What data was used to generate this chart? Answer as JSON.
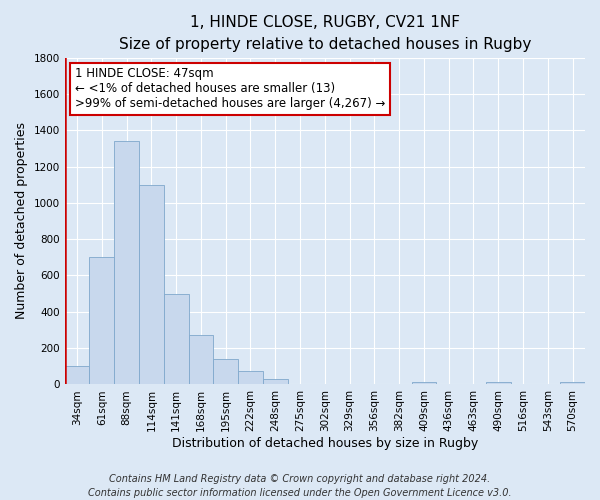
{
  "title": "1, HINDE CLOSE, RUGBY, CV21 1NF",
  "subtitle": "Size of property relative to detached houses in Rugby",
  "xlabel": "Distribution of detached houses by size in Rugby",
  "ylabel": "Number of detached properties",
  "categories": [
    "34sqm",
    "61sqm",
    "88sqm",
    "114sqm",
    "141sqm",
    "168sqm",
    "195sqm",
    "222sqm",
    "248sqm",
    "275sqm",
    "302sqm",
    "329sqm",
    "356sqm",
    "382sqm",
    "409sqm",
    "436sqm",
    "463sqm",
    "490sqm",
    "516sqm",
    "543sqm",
    "570sqm"
  ],
  "values": [
    100,
    700,
    1340,
    1100,
    500,
    275,
    140,
    75,
    30,
    0,
    0,
    0,
    0,
    0,
    15,
    0,
    0,
    15,
    0,
    0,
    15
  ],
  "bar_color": "#c8d8ed",
  "bar_edge_color": "#7fa8cc",
  "marker_color": "#cc0000",
  "marker_bar_index": 0,
  "ylim": [
    0,
    1800
  ],
  "yticks": [
    0,
    200,
    400,
    600,
    800,
    1000,
    1200,
    1400,
    1600,
    1800
  ],
  "annotation_title": "1 HINDE CLOSE: 47sqm",
  "annotation_line1": "← <1% of detached houses are smaller (13)",
  "annotation_line2": ">99% of semi-detached houses are larger (4,267) →",
  "annotation_box_color": "#ffffff",
  "annotation_box_edge": "#cc0000",
  "footnote1": "Contains HM Land Registry data © Crown copyright and database right 2024.",
  "footnote2": "Contains public sector information licensed under the Open Government Licence v3.0.",
  "background_color": "#dce8f5",
  "grid_color": "#ffffff",
  "title_fontsize": 11,
  "subtitle_fontsize": 9.5,
  "axis_label_fontsize": 9,
  "tick_fontsize": 7.5,
  "annotation_fontsize": 8.5,
  "footnote_fontsize": 7
}
